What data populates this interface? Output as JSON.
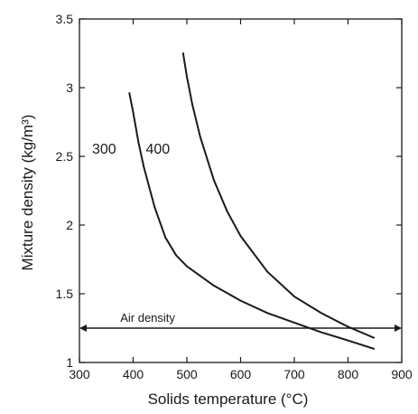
{
  "chart_data": {
    "type": "line",
    "title": "",
    "xlabel": "Solids temperature (°C)",
    "ylabel": "Mixture density (kg/m³)",
    "xlim": [
      300,
      900
    ],
    "ylim": [
      1,
      3.5
    ],
    "xticks": [
      300,
      400,
      500,
      600,
      700,
      800,
      900
    ],
    "xtick_labels": [
      "300",
      "400",
      "500",
      "600",
      "700",
      "800",
      "900"
    ],
    "yticks": [
      1,
      1.5,
      2,
      2.5,
      3,
      3.5
    ],
    "ytick_labels": [
      "1",
      "1.5",
      "2",
      "2.5",
      "3",
      "3.5"
    ],
    "grid": false,
    "series": [
      {
        "name": "300",
        "color": "#1a1a1a",
        "x": [
          393,
          400,
          410,
          420,
          440,
          460,
          480,
          500,
          550,
          600,
          650,
          700,
          750,
          800,
          848
        ],
        "y": [
          2.96,
          2.82,
          2.6,
          2.42,
          2.13,
          1.91,
          1.78,
          1.7,
          1.56,
          1.45,
          1.36,
          1.29,
          1.22,
          1.16,
          1.1
        ]
      },
      {
        "name": "400",
        "color": "#1a1a1a",
        "x": [
          493,
          500,
          510,
          525,
          550,
          575,
          600,
          650,
          700,
          750,
          800,
          848
        ],
        "y": [
          3.25,
          3.08,
          2.88,
          2.64,
          2.33,
          2.1,
          1.92,
          1.66,
          1.48,
          1.36,
          1.26,
          1.18
        ]
      }
    ],
    "annotations": [
      {
        "type": "hline_arrow",
        "label": "Air density",
        "y": 1.25,
        "x_start": 300,
        "x_end": 900
      }
    ]
  }
}
